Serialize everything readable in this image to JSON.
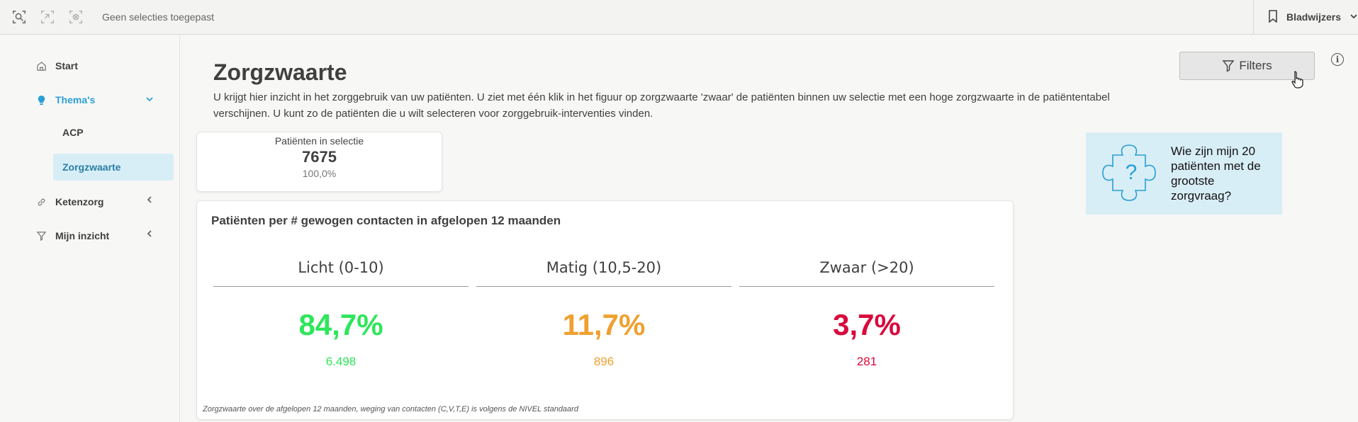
{
  "toolbar": {
    "selection_status": "Geen selecties toegepast",
    "bookmarks_label": "Bladwijzers",
    "icons": [
      "smart-search-icon",
      "step-back-icon",
      "clear-selections-icon"
    ]
  },
  "sidebar": {
    "items": [
      {
        "label": "Start",
        "icon": "home-icon"
      },
      {
        "label": "Thema's",
        "icon": "lightbulb-icon",
        "expanded": true
      },
      {
        "label": "Ketenzorg",
        "icon": "link-icon",
        "expanded": false
      },
      {
        "label": "Mijn inzicht",
        "icon": "filter-icon",
        "expanded": false
      }
    ],
    "sub_items": [
      {
        "label": "ACP",
        "active": false
      },
      {
        "label": "Zorgzwaarte",
        "active": true
      }
    ],
    "accent_color": "#2a9fd6"
  },
  "main": {
    "title": "Zorgzwaarte",
    "intro": "U krijgt hier inzicht in het zorggebruik van uw patiënten. U ziet met één klik in het figuur op zorgzwaarte 'zwaar' de patiënten binnen uw selectie met een hoge zorgzwaarte in de patiëntentabel verschijnen. U kunt zo de patiënten die u wilt selecteren voor zorggebruik-interventies vinden.",
    "filters_label": "Filters",
    "info_label": "i"
  },
  "kpi": {
    "label": "Patiënten in selectie",
    "value": "7675",
    "percentage": "100,0%"
  },
  "puzzle_card": {
    "question": "Wie zijn mijn 20 patiënten met de grootste zorgvraag?",
    "icon": "puzzle-question-icon"
  },
  "chart_data": {
    "type": "table",
    "title": "Patiënten per # gewogen contacten in afgelopen 12 maanden",
    "categories": [
      {
        "label": "Licht (0-10)",
        "percentage": "84,7%",
        "count": "6.498",
        "color": "#2ee65a"
      },
      {
        "label": "Matig (10,5-20)",
        "percentage": "11,7%",
        "count": "896",
        "color": "#f0a030"
      },
      {
        "label": "Zwaar (>20)",
        "percentage": "3,7%",
        "count": "281",
        "color": "#d9093c"
      }
    ],
    "footnote": "Zorgzwaarte over de afgelopen 12 maanden, weging van contacten (C,V,T,E) is volgens de NIVEL standaard"
  }
}
